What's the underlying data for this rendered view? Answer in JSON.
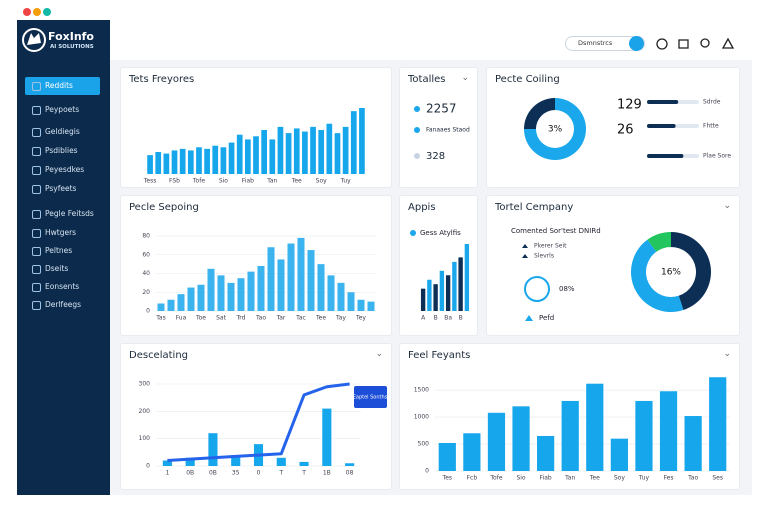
{
  "brand": {
    "name": "FoxInfo",
    "tagline": "AI SOLUTIONS"
  },
  "search": {
    "placeholder": "Dsmnstrcs"
  },
  "sidebar": [
    "Reddits",
    "Peypoets",
    "Geldiegis",
    "Psdiblies",
    "Peyesdkes",
    "Psyfeets",
    "Pegle Feitsds",
    "Hwtgers",
    "Peltnes",
    "Dseits",
    "Eonsents",
    "Derlfeegs"
  ],
  "panels": [
    {
      "title": "Tets Freyores",
      "chart": {
        "type": "bar",
        "color": "#15a6ec",
        "categories": [
          "Tess",
          null,
          null,
          "FSb",
          null,
          null,
          "Tofe",
          null,
          null,
          "Sio",
          null,
          null,
          "Fiab",
          null,
          null,
          "Tan",
          null,
          null,
          "Tee",
          null,
          null,
          "Soy",
          null,
          null,
          "Tuy",
          null,
          null
        ],
        "values": [
          12,
          14,
          13,
          15,
          16,
          15,
          17,
          16,
          18,
          17,
          20,
          25,
          22,
          24,
          28,
          22,
          30,
          26,
          29,
          27,
          30,
          28,
          32,
          26,
          30,
          40,
          42
        ]
      }
    },
    {
      "title": "Totalles",
      "items": [
        "2257",
        "Fanaaes Staod",
        "328"
      ]
    },
    {
      "title": "Pecte Coiling",
      "chart": {
        "type": "pie",
        "values": [
          75,
          25
        ],
        "colors": [
          "#1aa7ec",
          "#0d2f55"
        ],
        "center_label": "3%"
      },
      "stats": [
        "129",
        "26"
      ],
      "progress": [
        {
          "label": "Sdrde",
          "value": 60
        },
        {
          "label": "Fhtte",
          "value": 55
        },
        {
          "label": "Plae Sore",
          "value": 70
        }
      ]
    },
    {
      "title": "Pecle Sepoing",
      "chart": {
        "type": "bar",
        "color": "#3bb3ef",
        "categories": [
          "Tas",
          null,
          "Fua",
          null,
          "Toe",
          null,
          "Sat",
          null,
          "Trd",
          null,
          "Tao",
          null,
          "Tar",
          null,
          "Tac",
          null,
          "Tee",
          null,
          "Tay",
          null,
          "Tey",
          null
        ],
        "values": [
          8,
          12,
          18,
          25,
          28,
          45,
          38,
          30,
          35,
          42,
          48,
          68,
          55,
          72,
          78,
          65,
          50,
          38,
          30,
          20,
          12,
          10
        ],
        "ylim": [
          0,
          80
        ],
        "yticks": [
          0,
          20,
          40,
          60,
          80
        ]
      }
    },
    {
      "title": "Appis",
      "legend": "Gess Atylfis",
      "chart": {
        "type": "bar",
        "categories": [
          "A",
          null,
          "B",
          null,
          "Ba",
          null,
          "B",
          null
        ],
        "values": [
          25,
          35,
          30,
          45,
          40,
          55,
          60,
          75
        ],
        "colors": [
          "#0d2f55",
          "#1aa7ec",
          "#0d2f55",
          "#1aa7ec",
          "#0d2f55",
          "#1aa7ec",
          "#0d2f55",
          "#1aa7ec"
        ]
      }
    },
    {
      "title": "Tortel Cempany",
      "subtitle": "Comented Sor'test DNIRd",
      "list": [
        "Pkerer Seit",
        "Slevrls"
      ],
      "ring_label": "08%",
      "footer": "Pefd",
      "chart": {
        "type": "pie",
        "values": [
          45,
          45,
          10
        ],
        "colors": [
          "#0d2f55",
          "#1aa7ec",
          "#22c55e"
        ],
        "center_label": "16%"
      }
    },
    {
      "title": "Descelating",
      "annotation": "Eaptel Sonths",
      "chart": {
        "type": "combo",
        "color": "#15a6ec",
        "line_color": "#2563eb",
        "categories": [
          "1",
          "0B",
          "0B",
          "35",
          "0",
          "T",
          "T",
          "1B",
          "08"
        ],
        "bars": [
          20,
          30,
          120,
          40,
          80,
          30,
          15,
          210,
          10
        ],
        "line": [
          20,
          25,
          30,
          35,
          40,
          45,
          260,
          290,
          300
        ],
        "ylim": [
          0,
          300
        ],
        "yticks": [
          0,
          100,
          200,
          300
        ]
      }
    },
    {
      "title": "Feel Feyants",
      "chart": {
        "type": "bar",
        "color": "#15a6ec",
        "categories": [
          "Tes",
          "Fcb",
          "Tofe",
          "Sio",
          "Fiab",
          "Tan",
          "Tee",
          "Soy",
          "Tuy",
          "Fes",
          "Tao",
          "Ses"
        ],
        "values": [
          520,
          700,
          1080,
          1200,
          650,
          1300,
          1620,
          600,
          1300,
          1480,
          1020,
          1740
        ],
        "ylim": [
          0,
          1800
        ],
        "yticks": [
          0,
          500,
          1000,
          1500
        ]
      }
    }
  ]
}
